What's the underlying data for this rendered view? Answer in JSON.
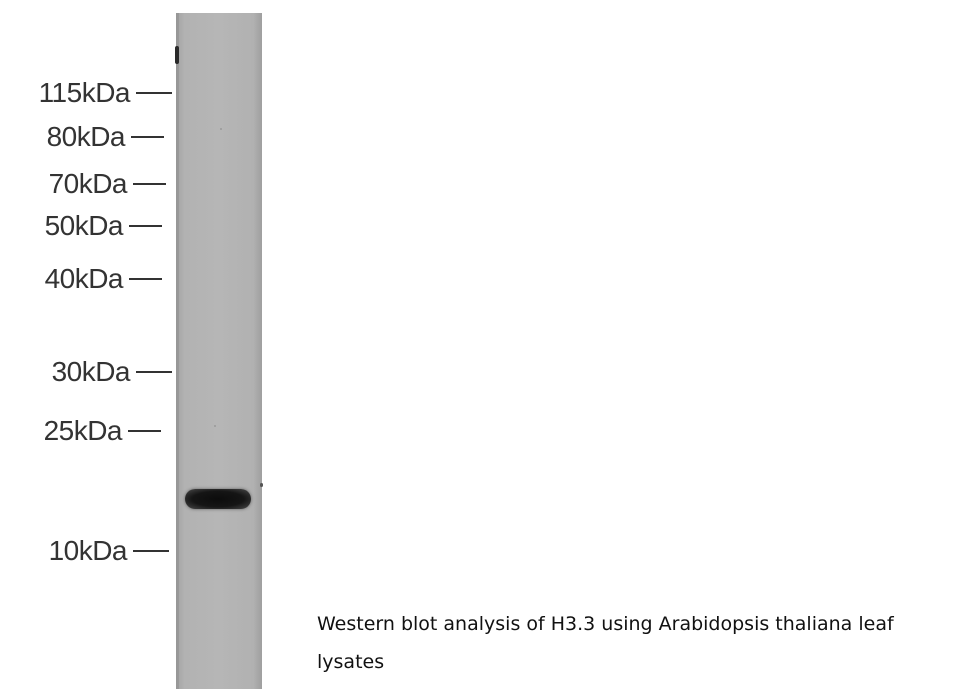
{
  "markers": [
    {
      "label": "115kDa"
    },
    {
      "label": "80kDa"
    },
    {
      "label": "70kDa"
    },
    {
      "label": "50kDa"
    },
    {
      "label": "40kDa"
    },
    {
      "label": "30kDa"
    },
    {
      "label": "25kDa"
    },
    {
      "label": "10kDa"
    }
  ],
  "caption": "Western blot analysis of H3.3 using Arabidopsis thaliana leaf lysates"
}
